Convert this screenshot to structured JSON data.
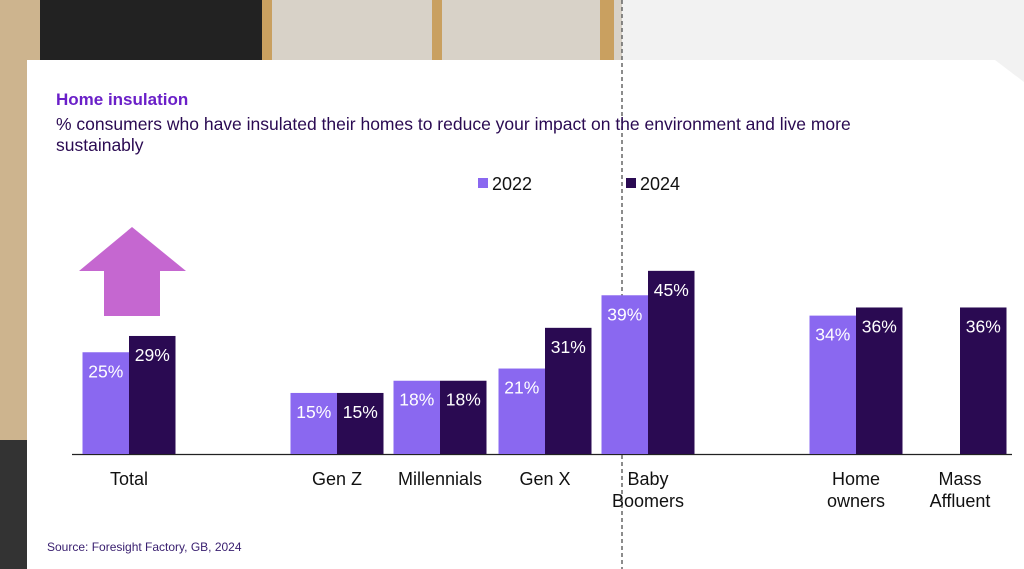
{
  "chart_data": {
    "type": "bar",
    "title": "Home insulation",
    "subtitle": "% consumers who have insulated their homes to reduce your impact on the environment and live more sustainably",
    "categories": [
      "Total",
      "Gen Z",
      "Millennials",
      "Gen X",
      "Baby Boomers",
      "Home owners",
      "Mass Affluent"
    ],
    "series": [
      {
        "name": "2022",
        "color": "#8a68f0",
        "values": [
          25,
          15,
          18,
          21,
          39,
          34,
          null
        ],
        "value_labels": [
          "25%",
          "15%",
          "18%",
          "21%",
          "39%",
          "34%",
          null
        ]
      },
      {
        "name": "2024",
        "color": "#2a0a52",
        "values": [
          29,
          15,
          18,
          31,
          45,
          36,
          36
        ],
        "value_labels": [
          "29%",
          "15%",
          "18%",
          "31%",
          "45%",
          "36%",
          "36%"
        ]
      }
    ],
    "source": "Source: Foresight Factory, GB, 2024"
  }
}
